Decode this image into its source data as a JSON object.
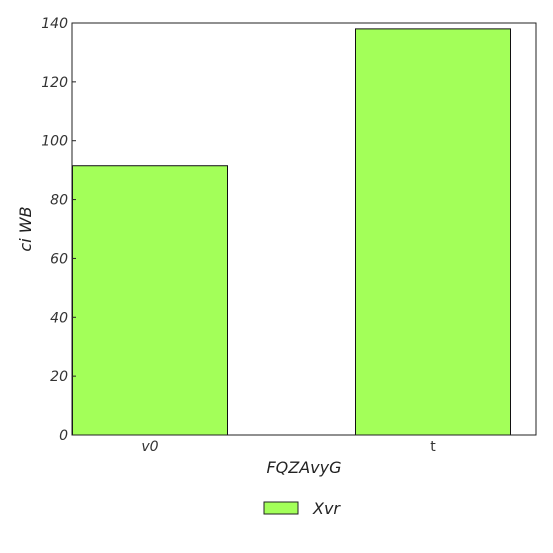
{
  "chart_data": {
    "type": "bar",
    "categories": [
      "v0",
      "t"
    ],
    "series": [
      {
        "name": "Xvr",
        "values": [
          91.5,
          138
        ],
        "color": "#a3ff59"
      }
    ],
    "xlabel": "FQZAvyG",
    "ylabel": "ci  WB",
    "ylim": [
      0,
      140
    ],
    "yticks": [
      0,
      20,
      40,
      60,
      80,
      100,
      120,
      140
    ],
    "grid": false,
    "legend_position": "bottom-center"
  }
}
